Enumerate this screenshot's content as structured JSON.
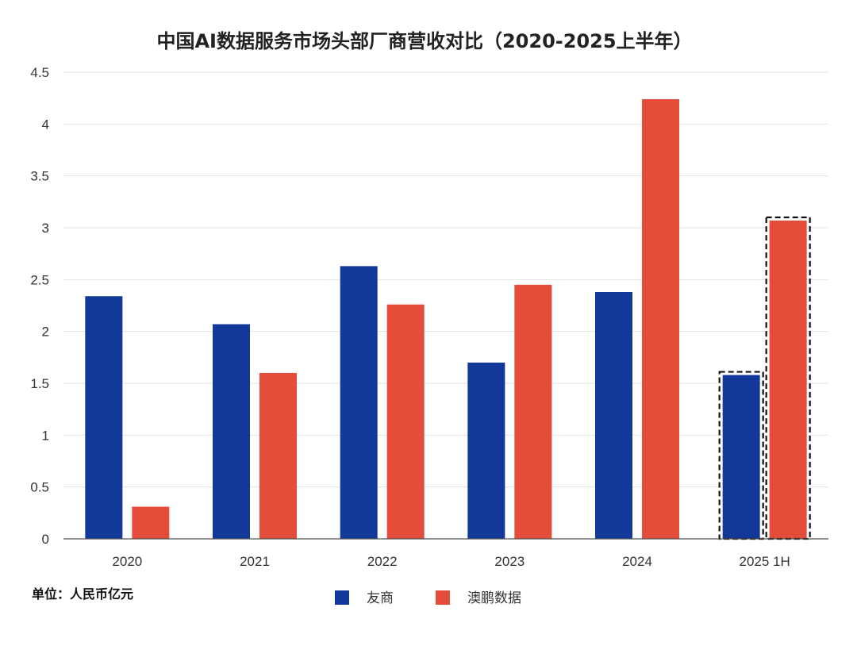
{
  "chart_data": {
    "type": "bar",
    "title": "中国AI数据服务市场头部厂商营收对比（2020-2025上半年）",
    "unit_label": "单位：人民币亿元",
    "categories": [
      "2020",
      "2021",
      "2022",
      "2023",
      "2024",
      "2025 1H"
    ],
    "series": [
      {
        "name": "友商",
        "color": "#12399a",
        "values": [
          2.34,
          2.07,
          2.63,
          1.7,
          2.38,
          1.58
        ]
      },
      {
        "name": "澳鹏数据",
        "color": "#e34d3a",
        "values": [
          0.31,
          1.6,
          2.26,
          2.45,
          4.24,
          3.07
        ]
      }
    ],
    "ylim": [
      0,
      4.5
    ],
    "yticks": [
      "0",
      "0.5",
      "1",
      "1.5",
      "2",
      "2.5",
      "3",
      "3.5",
      "4",
      "4.5"
    ],
    "grid": true,
    "legend_position": "bottom-center",
    "highlighted_category": "2025 1H",
    "highlight_style": "dashed-outline"
  }
}
